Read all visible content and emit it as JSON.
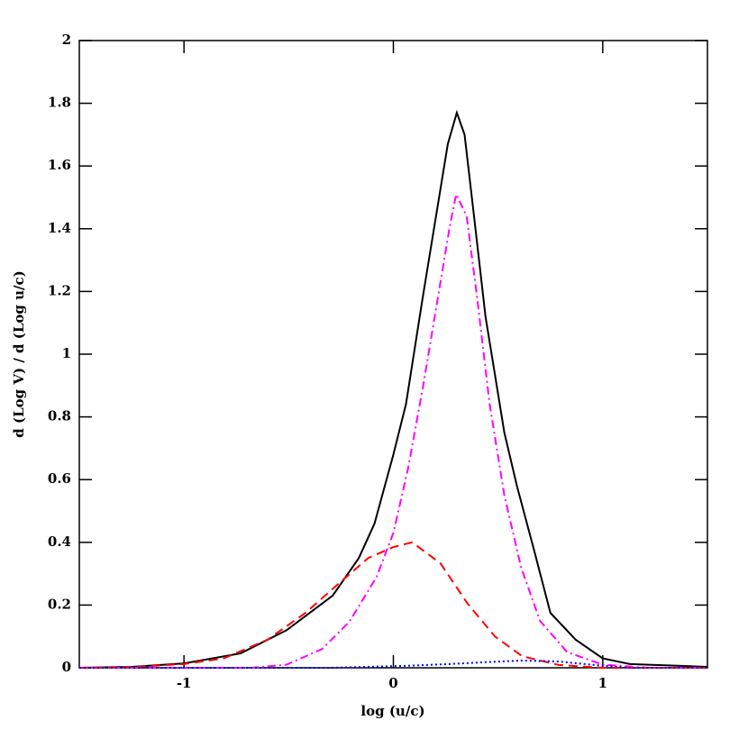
{
  "chart_data": {
    "type": "line",
    "xlabel": "log (u/c)",
    "ylabel": "d (Log V) / d (Log u/c)",
    "xlim": [
      -1.5,
      1.5
    ],
    "xticks": [
      -1,
      0,
      1
    ],
    "ylim": [
      0,
      2
    ],
    "yticks": [
      0,
      0.2,
      0.4,
      0.6,
      0.8,
      1,
      1.2,
      1.4,
      1.6,
      1.8,
      2
    ],
    "series": [
      {
        "color": "#000000",
        "dash": "solid",
        "x": [
          -1.5,
          -1.25,
          -1,
          -0.73,
          -0.51,
          -0.29,
          -0.165,
          -0.09,
          0,
          0.06,
          0.14,
          0.26,
          0.303,
          0.34,
          0.38,
          0.44,
          0.53,
          0.59,
          0.67,
          0.75,
          0.87,
          1.0,
          1.13,
          1.5
        ],
        "values": [
          0,
          0.003,
          0.014,
          0.046,
          0.12,
          0.23,
          0.35,
          0.46,
          0.68,
          0.84,
          1.18,
          1.67,
          1.77,
          1.7,
          1.47,
          1.12,
          0.75,
          0.58,
          0.38,
          0.175,
          0.09,
          0.03,
          0.012,
          0.003
        ]
      },
      {
        "color": "#ff00ff",
        "dash": "dashdot",
        "x": [
          -1.5,
          -0.68,
          -0.51,
          -0.34,
          -0.21,
          -0.08,
          0,
          0.07,
          0.14,
          0.27,
          0.3,
          0.35,
          0.4,
          0.46,
          0.53,
          0.61,
          0.7,
          0.83,
          1.0,
          1.22,
          1.5
        ],
        "values": [
          0,
          0,
          0.01,
          0.06,
          0.147,
          0.29,
          0.43,
          0.635,
          0.89,
          1.41,
          1.51,
          1.44,
          1.18,
          0.84,
          0.55,
          0.32,
          0.15,
          0.05,
          0.01,
          0,
          0
        ]
      },
      {
        "color": "#ff0000",
        "dash": "dashed",
        "x": [
          -1.5,
          -1.25,
          -1,
          -0.81,
          -0.6,
          -0.42,
          -0.25,
          -0.12,
          0,
          0.09,
          0.225,
          0.355,
          0.485,
          0.615,
          0.79,
          1.0,
          1.5
        ],
        "values": [
          0,
          0.002,
          0.012,
          0.03,
          0.09,
          0.175,
          0.275,
          0.35,
          0.385,
          0.4,
          0.333,
          0.204,
          0.1,
          0.037,
          0.009,
          0,
          0
        ]
      },
      {
        "color": "#0000ff",
        "dash": "dotted",
        "x": [
          -1.5,
          -0.3,
          0.05,
          0.27,
          0.44,
          0.61,
          0.79,
          0.96,
          1.13,
          1.5
        ],
        "values": [
          0,
          0,
          0.006,
          0.012,
          0.018,
          0.023,
          0.02,
          0.009,
          0,
          0
        ]
      }
    ]
  }
}
